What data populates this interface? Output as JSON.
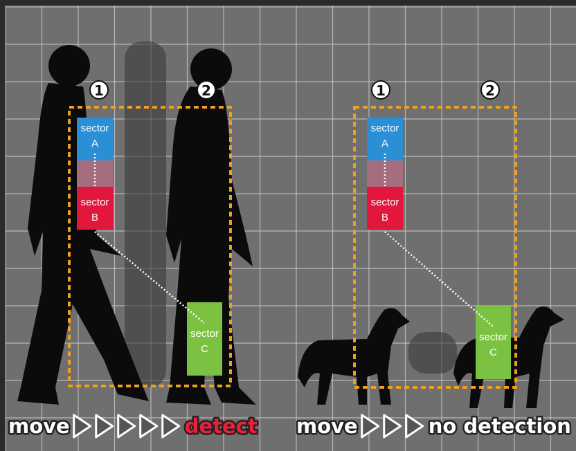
{
  "panels": [
    {
      "markers": [
        "1",
        "2"
      ],
      "sectors": [
        {
          "label": "sector",
          "letter": "A"
        },
        {
          "label": "sector",
          "letter": "B"
        },
        {
          "label": "sector",
          "letter": "C"
        }
      ],
      "caption": {
        "action": "move",
        "result": "detect"
      }
    },
    {
      "markers": [
        "1",
        "2"
      ],
      "sectors": [
        {
          "label": "sector",
          "letter": "A"
        },
        {
          "label": "sector",
          "letter": "B"
        },
        {
          "label": "sector",
          "letter": "C"
        }
      ],
      "caption": {
        "action": "move",
        "result": "no detection"
      }
    }
  ]
}
